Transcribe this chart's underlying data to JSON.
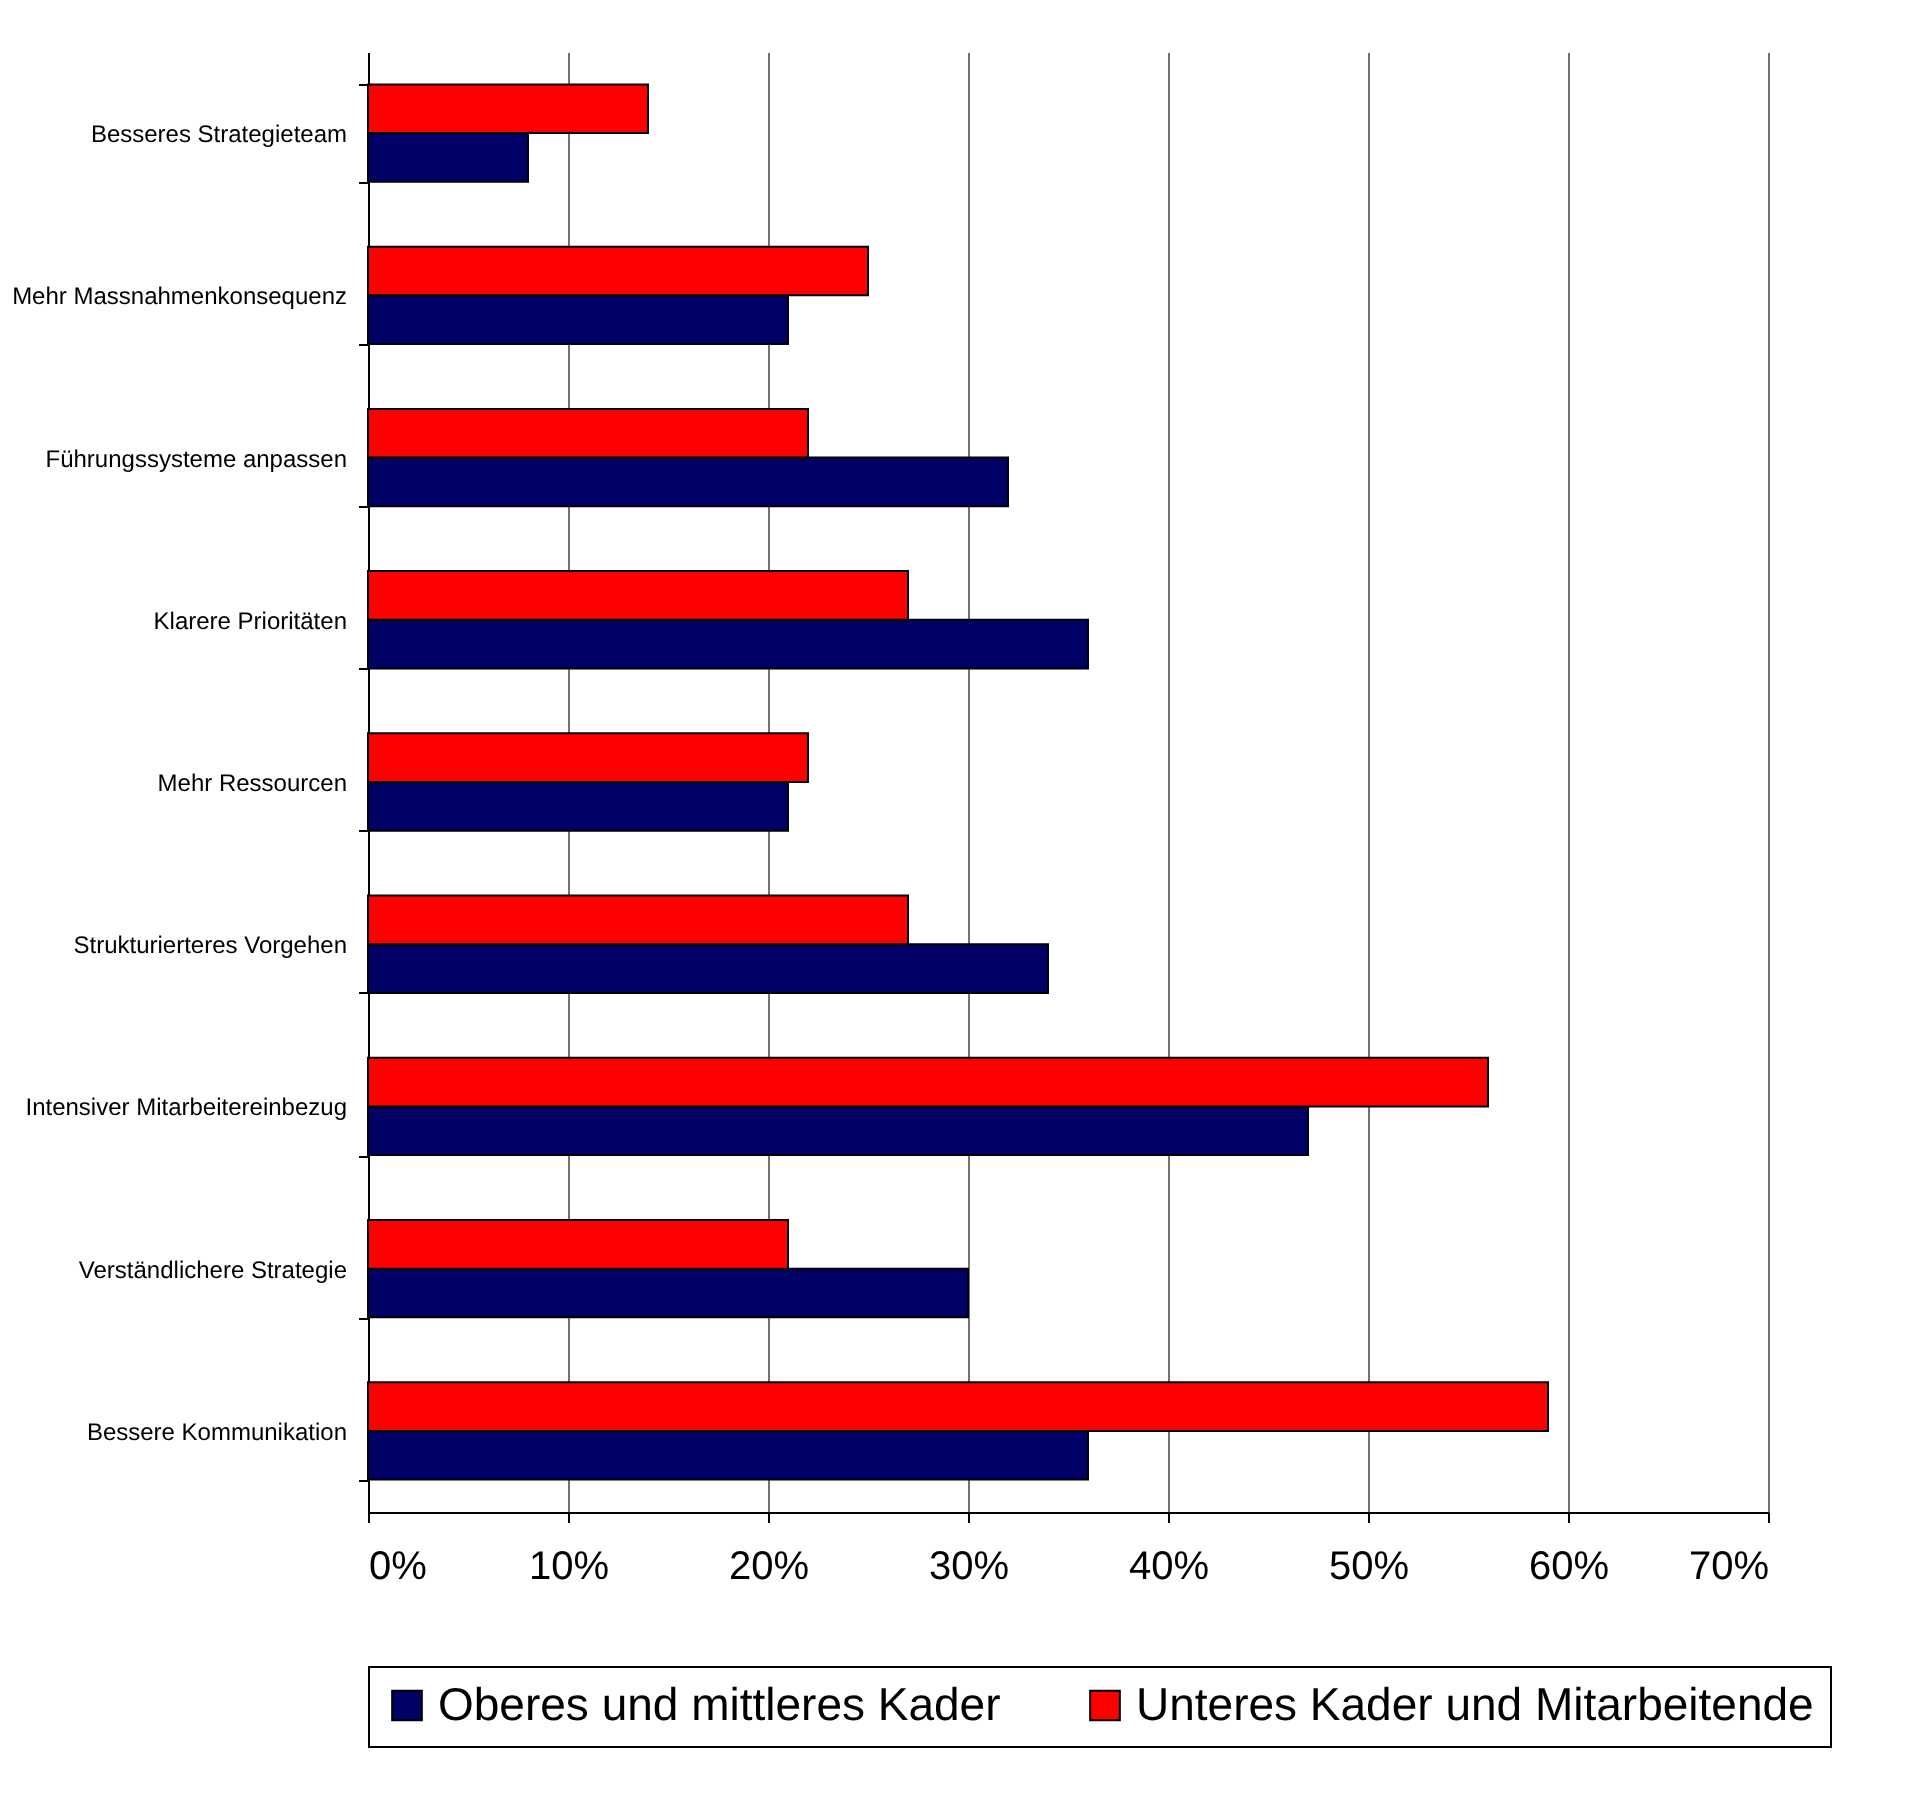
{
  "chart_data": {
    "type": "bar",
    "orientation": "horizontal",
    "categories": [
      "Besseres Strategieteam",
      "Mehr Massnahmenkonsequenz",
      "Führungssysteme anpassen",
      "Klarere Prioritäten",
      "Mehr Ressourcen",
      "Strukturierteres Vorgehen",
      "Intensiver Mitarbeitereinbezug",
      "Verständlichere Strategie",
      "Bessere Kommunikation"
    ],
    "series": [
      {
        "name": "Oberes und mittleres Kader",
        "color": "#000066",
        "values": [
          8,
          21,
          32,
          36,
          21,
          34,
          47,
          30,
          36
        ]
      },
      {
        "name": "Unteres Kader und Mitarbeitende",
        "color": "#ff0000",
        "values": [
          14,
          25,
          22,
          27,
          22,
          27,
          56,
          21,
          59
        ]
      }
    ],
    "xlim": [
      0,
      70
    ],
    "xticks": [
      {
        "value": 0,
        "label": "0%"
      },
      {
        "value": 10,
        "label": "10%"
      },
      {
        "value": 20,
        "label": "20%"
      },
      {
        "value": 30,
        "label": "30%"
      },
      {
        "value": 40,
        "label": "40%"
      },
      {
        "value": 50,
        "label": "50%"
      },
      {
        "value": 60,
        "label": "60%"
      },
      {
        "value": 70,
        "label": "70%"
      }
    ],
    "grid": "x",
    "legend": "bottom"
  }
}
